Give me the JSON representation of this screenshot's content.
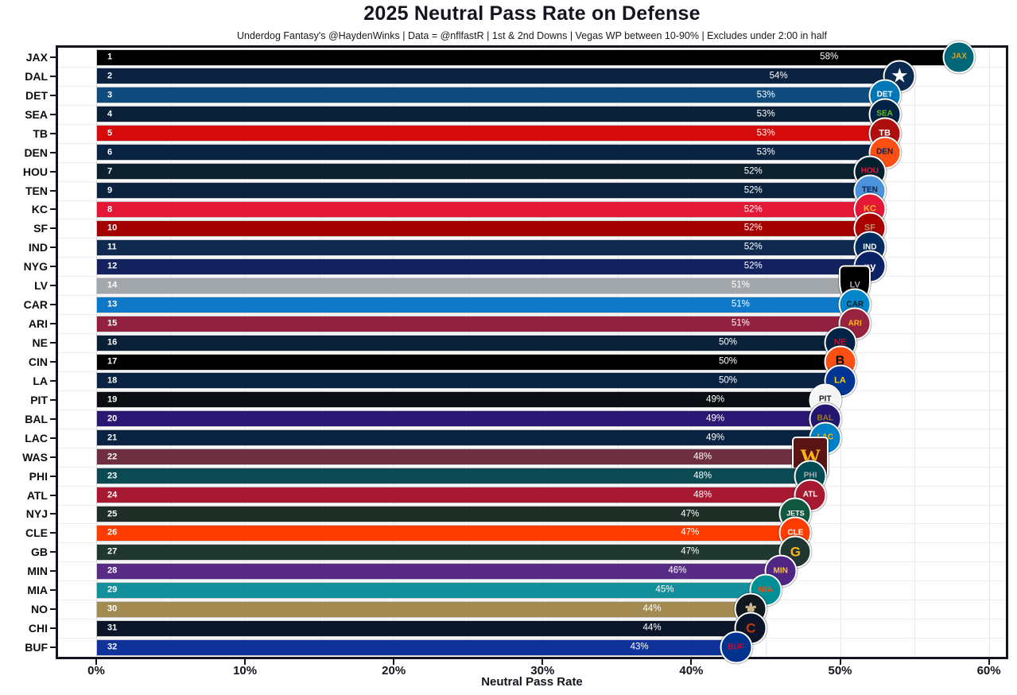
{
  "figure": {
    "title": "2025 Neutral Pass Rate on Defense",
    "subtitle": "Underdog Fantasy's @HaydenWinks | Data = @nflfastR | 1st & 2nd Downs | Vegas WP between 10-90% | Excludes under 2:00 in half"
  },
  "chart_data": {
    "type": "bar",
    "orientation": "horizontal",
    "title": "2025 Neutral Pass Rate on Defense",
    "xlabel": "Neutral Pass Rate",
    "ylabel": "",
    "xlim": [
      0,
      61
    ],
    "x_ticks": [
      "0%",
      "10%",
      "20%",
      "30%",
      "40%",
      "50%",
      "60%"
    ],
    "x_tick_values": [
      0,
      10,
      20,
      30,
      40,
      50,
      60
    ],
    "grid": "on",
    "legend": "none",
    "categories": [
      "JAX",
      "DAL",
      "DET",
      "SEA",
      "TB",
      "DEN",
      "HOU",
      "TEN",
      "KC",
      "SF",
      "IND",
      "NYG",
      "LV",
      "CAR",
      "ARI",
      "NE",
      "CIN",
      "LA",
      "PIT",
      "BAL",
      "LAC",
      "WAS",
      "PHI",
      "ATL",
      "NYJ",
      "CLE",
      "GB",
      "MIN",
      "MIA",
      "NO",
      "CHI",
      "BUF"
    ],
    "values": [
      58,
      54,
      53,
      53,
      53,
      53,
      52,
      52,
      52,
      52,
      52,
      52,
      51,
      51,
      51,
      50,
      50,
      50,
      49,
      49,
      49,
      48,
      48,
      48,
      47,
      47,
      47,
      46,
      45,
      44,
      44,
      43
    ],
    "bars": [
      {
        "abbr": "JAX",
        "rank": "1",
        "pct": 58,
        "pct_label": "58%",
        "bar_color": "#000000",
        "logo_bg": "#006778",
        "logo_fg": "#d7a22a",
        "logo_text": "JAX",
        "logo_shape": "circle",
        "logo_font": 10
      },
      {
        "abbr": "DAL",
        "rank": "2",
        "pct": 54,
        "pct_label": "54%",
        "bar_color": "#0a2140",
        "logo_bg": "#0a2a52",
        "logo_fg": "#ffffff",
        "logo_text": "★",
        "logo_shape": "circle",
        "logo_font": 22
      },
      {
        "abbr": "DET",
        "rank": "3",
        "pct": 53,
        "pct_label": "53%",
        "bar_color": "#104b7d",
        "logo_bg": "#0076b6",
        "logo_fg": "#ffffff",
        "logo_text": "DET",
        "logo_shape": "circle",
        "logo_font": 10
      },
      {
        "abbr": "SEA",
        "rank": "4",
        "pct": 53,
        "pct_label": "53%",
        "bar_color": "#0a2038",
        "logo_bg": "#002244",
        "logo_fg": "#69be28",
        "logo_text": "SEA",
        "logo_shape": "circle",
        "logo_font": 10
      },
      {
        "abbr": "TB",
        "rank": "5",
        "pct": 53,
        "pct_label": "53%",
        "bar_color": "#d50a0a",
        "logo_bg": "#b00f0f",
        "logo_fg": "#ffffff",
        "logo_text": "TB",
        "logo_shape": "circle",
        "logo_font": 11
      },
      {
        "abbr": "DEN",
        "rank": "6",
        "pct": 53,
        "pct_label": "53%",
        "bar_color": "#0a2343",
        "logo_bg": "#fb4f14",
        "logo_fg": "#002244",
        "logo_text": "DEN",
        "logo_shape": "circle",
        "logo_font": 10
      },
      {
        "abbr": "HOU",
        "rank": "7",
        "pct": 52,
        "pct_label": "52%",
        "bar_color": "#0c202e",
        "logo_bg": "#03202f",
        "logo_fg": "#e31837",
        "logo_text": "HOU",
        "logo_shape": "circle",
        "logo_font": 10
      },
      {
        "abbr": "TEN",
        "rank": "9",
        "pct": 52,
        "pct_label": "52%",
        "bar_color": "#0c2340",
        "logo_bg": "#4b92db",
        "logo_fg": "#0c2340",
        "logo_text": "TEN",
        "logo_shape": "circle",
        "logo_font": 10
      },
      {
        "abbr": "KC",
        "rank": "8",
        "pct": 52,
        "pct_label": "52%",
        "bar_color": "#e31837",
        "logo_bg": "#e31837",
        "logo_fg": "#ffb81c",
        "logo_text": "KC",
        "logo_shape": "circle",
        "logo_font": 11
      },
      {
        "abbr": "SF",
        "rank": "10",
        "pct": 52,
        "pct_label": "52%",
        "bar_color": "#a30000",
        "logo_bg": "#aa0000",
        "logo_fg": "#b3995d",
        "logo_text": "SF",
        "logo_shape": "circle",
        "logo_font": 11
      },
      {
        "abbr": "IND",
        "rank": "11",
        "pct": 52,
        "pct_label": "52%",
        "bar_color": "#0f2a4e",
        "logo_bg": "#002c5f",
        "logo_fg": "#ffffff",
        "logo_text": "IND",
        "logo_shape": "circle",
        "logo_font": 10
      },
      {
        "abbr": "NYG",
        "rank": "12",
        "pct": 52,
        "pct_label": "52%",
        "bar_color": "#14225f",
        "logo_bg": "#0b2265",
        "logo_fg": "#ffffff",
        "logo_text": "ny",
        "logo_shape": "circle",
        "logo_font": 13
      },
      {
        "abbr": "LV",
        "rank": "14",
        "pct": 51,
        "pct_label": "51%",
        "bar_color": "#a2a7ab",
        "logo_bg": "#000000",
        "logo_fg": "#a5acaf",
        "logo_text": "LV",
        "logo_shape": "shield",
        "logo_font": 11
      },
      {
        "abbr": "CAR",
        "rank": "13",
        "pct": 51,
        "pct_label": "51%",
        "bar_color": "#1078c8",
        "logo_bg": "#0085ca",
        "logo_fg": "#101820",
        "logo_text": "CAR",
        "logo_shape": "circle",
        "logo_font": 10
      },
      {
        "abbr": "ARI",
        "rank": "15",
        "pct": 51,
        "pct_label": "51%",
        "bar_color": "#92203f",
        "logo_bg": "#97233f",
        "logo_fg": "#ffb612",
        "logo_text": "ARI",
        "logo_shape": "circle",
        "logo_font": 10
      },
      {
        "abbr": "NE",
        "rank": "16",
        "pct": 50,
        "pct_label": "50%",
        "bar_color": "#0a2038",
        "logo_bg": "#002244",
        "logo_fg": "#c60c30",
        "logo_text": "NE",
        "logo_shape": "circle",
        "logo_font": 11
      },
      {
        "abbr": "CIN",
        "rank": "17",
        "pct": 50,
        "pct_label": "50%",
        "bar_color": "#000000",
        "logo_bg": "#fb4f14",
        "logo_fg": "#000000",
        "logo_text": "B",
        "logo_shape": "circle",
        "logo_font": 16
      },
      {
        "abbr": "LA",
        "rank": "18",
        "pct": 50,
        "pct_label": "50%",
        "bar_color": "#0b2342",
        "logo_bg": "#003594",
        "logo_fg": "#ffd100",
        "logo_text": "LA",
        "logo_shape": "circle",
        "logo_font": 11
      },
      {
        "abbr": "PIT",
        "rank": "19",
        "pct": 49,
        "pct_label": "49%",
        "bar_color": "#0a0d12",
        "logo_bg": "#f5f5f5",
        "logo_fg": "#101820",
        "logo_text": "PIT",
        "logo_shape": "circle",
        "logo_font": 10
      },
      {
        "abbr": "BAL",
        "rank": "20",
        "pct": 49,
        "pct_label": "49%",
        "bar_color": "#291773",
        "logo_bg": "#241773",
        "logo_fg": "#9e7c0c",
        "logo_text": "BAL",
        "logo_shape": "circle",
        "logo_font": 10
      },
      {
        "abbr": "LAC",
        "rank": "21",
        "pct": 49,
        "pct_label": "49%",
        "bar_color": "#0a2342",
        "logo_bg": "#0080c6",
        "logo_fg": "#ffc20e",
        "logo_text": "LAC",
        "logo_shape": "circle",
        "logo_font": 10
      },
      {
        "abbr": "WAS",
        "rank": "22",
        "pct": 48,
        "pct_label": "48%",
        "bar_color": "#6e3040",
        "logo_bg": "#5a1414",
        "logo_fg": "#ffb612",
        "logo_text": "W",
        "logo_shape": "square",
        "logo_font": 26
      },
      {
        "abbr": "PHI",
        "rank": "23",
        "pct": 48,
        "pct_label": "48%",
        "bar_color": "#0b4a52",
        "logo_bg": "#004c54",
        "logo_fg": "#a5acaf",
        "logo_text": "PHI",
        "logo_shape": "circle",
        "logo_font": 10
      },
      {
        "abbr": "ATL",
        "rank": "24",
        "pct": 48,
        "pct_label": "48%",
        "bar_color": "#a71930",
        "logo_bg": "#a71930",
        "logo_fg": "#ffffff",
        "logo_text": "ATL",
        "logo_shape": "circle",
        "logo_font": 10
      },
      {
        "abbr": "NYJ",
        "rank": "25",
        "pct": 47,
        "pct_label": "47%",
        "bar_color": "#1e2d25",
        "logo_bg": "#125740",
        "logo_fg": "#ffffff",
        "logo_text": "JETS",
        "logo_shape": "circle",
        "logo_font": 9
      },
      {
        "abbr": "CLE",
        "rank": "26",
        "pct": 47,
        "pct_label": "47%",
        "bar_color": "#fe3c00",
        "logo_bg": "#ff3c00",
        "logo_fg": "#ffffff",
        "logo_text": "CLE",
        "logo_shape": "circle",
        "logo_font": 10
      },
      {
        "abbr": "GB",
        "rank": "27",
        "pct": 47,
        "pct_label": "47%",
        "bar_color": "#213830",
        "logo_bg": "#203731",
        "logo_fg": "#ffb612",
        "logo_text": "G",
        "logo_shape": "circle",
        "logo_font": 17
      },
      {
        "abbr": "MIN",
        "rank": "28",
        "pct": 46,
        "pct_label": "46%",
        "bar_color": "#582c86",
        "logo_bg": "#4f2683",
        "logo_fg": "#ffc62f",
        "logo_text": "MIN",
        "logo_shape": "circle",
        "logo_font": 10
      },
      {
        "abbr": "MIA",
        "rank": "29",
        "pct": 45,
        "pct_label": "45%",
        "bar_color": "#13909b",
        "logo_bg": "#008e97",
        "logo_fg": "#fc4c02",
        "logo_text": "MIA",
        "logo_shape": "circle",
        "logo_font": 10
      },
      {
        "abbr": "NO",
        "rank": "30",
        "pct": 44,
        "pct_label": "44%",
        "bar_color": "#a28a50",
        "logo_bg": "#101820",
        "logo_fg": "#d3bc8d",
        "logo_text": "⚜",
        "logo_shape": "circle",
        "logo_font": 20
      },
      {
        "abbr": "CHI",
        "rank": "31",
        "pct": 44,
        "pct_label": "44%",
        "bar_color": "#0b162a",
        "logo_bg": "#0b162a",
        "logo_fg": "#c83803",
        "logo_text": "C",
        "logo_shape": "circle",
        "logo_font": 17
      },
      {
        "abbr": "BUF",
        "rank": "32",
        "pct": 43,
        "pct_label": "43%",
        "bar_color": "#10339b",
        "logo_bg": "#00338d",
        "logo_fg": "#c60c30",
        "logo_text": "BUF",
        "logo_shape": "circle",
        "logo_font": 10
      }
    ]
  }
}
